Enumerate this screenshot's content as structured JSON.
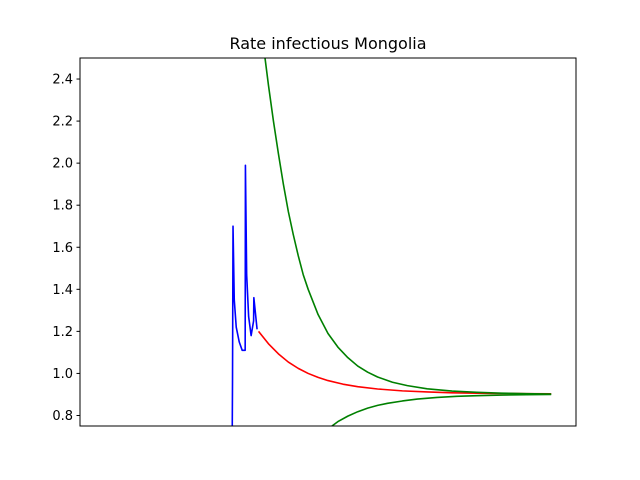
{
  "chart_data": {
    "type": "line",
    "title": "Rate infectious Mongolia",
    "xlabel": "",
    "ylabel": "",
    "xlim": [
      0,
      100
    ],
    "ylim": [
      0.75,
      2.5
    ],
    "yticks": [
      0.8,
      1.0,
      1.2,
      1.4,
      1.6,
      1.8,
      2.0,
      2.2,
      2.4
    ],
    "xticks": [],
    "grid": false,
    "legend": "none",
    "series": [
      {
        "color": "#0000ff",
        "x": [
          30.7,
          30.75,
          30.85,
          31.1,
          31.5,
          32.1,
          32.7,
          33.3,
          33.35,
          33.6,
          34.0,
          34.5,
          35.0,
          35.05,
          35.4,
          35.7
        ],
        "values": [
          0.75,
          0.97,
          1.7,
          1.35,
          1.22,
          1.15,
          1.11,
          1.11,
          1.99,
          1.47,
          1.27,
          1.18,
          1.25,
          1.36,
          1.28,
          1.21
        ]
      },
      {
        "color": "#ff0000",
        "x": [
          36.0,
          38,
          40,
          42,
          44,
          46,
          48,
          50,
          53,
          56,
          60,
          65,
          70,
          75,
          80,
          85,
          90,
          95
        ],
        "values": [
          1.2,
          1.141,
          1.093,
          1.054,
          1.024,
          1.0,
          0.981,
          0.966,
          0.949,
          0.937,
          0.926,
          0.917,
          0.912,
          0.908,
          0.906,
          0.905,
          0.904,
          0.903
        ]
      },
      {
        "color": "#008000",
        "x": [
          37.3,
          38,
          39,
          40,
          41,
          42,
          43,
          44,
          45,
          46,
          48,
          50,
          52,
          54,
          56,
          58,
          60,
          63,
          66,
          70,
          75,
          80,
          85,
          90,
          95
        ],
        "values": [
          2.5,
          2.37,
          2.2,
          2.045,
          1.9,
          1.77,
          1.66,
          1.56,
          1.47,
          1.4,
          1.28,
          1.19,
          1.125,
          1.075,
          1.035,
          1.006,
          0.983,
          0.958,
          0.942,
          0.927,
          0.916,
          0.91,
          0.906,
          0.904,
          0.902
        ]
      },
      {
        "color": "#008000",
        "x": [
          50.8,
          52,
          54,
          56,
          58,
          60,
          62,
          65,
          68,
          72,
          76,
          80,
          85,
          90,
          95
        ],
        "values": [
          0.75,
          0.771,
          0.797,
          0.818,
          0.835,
          0.848,
          0.858,
          0.869,
          0.878,
          0.886,
          0.891,
          0.894,
          0.897,
          0.899,
          0.9
        ]
      }
    ]
  }
}
